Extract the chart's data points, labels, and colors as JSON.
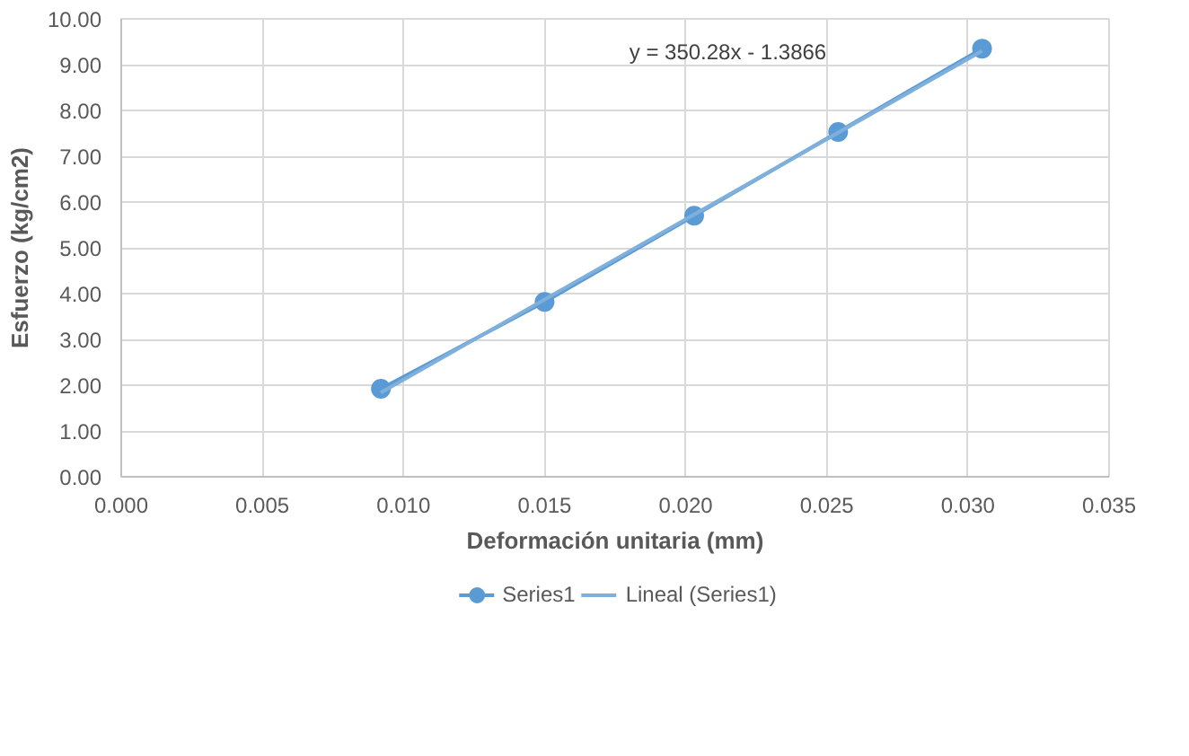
{
  "chart_data": {
    "type": "line",
    "xlabel": "Deformación unitaria (mm)",
    "ylabel": "Esfuerzo (kg/cm2)",
    "series": [
      {
        "name": "Series1",
        "marker": "circle",
        "color": "#5b9bd5",
        "x": [
          0.0092,
          0.015,
          0.0203,
          0.0254,
          0.0305
        ],
        "values": [
          1.92,
          3.82,
          5.7,
          7.53,
          9.35
        ]
      },
      {
        "name": "Lineal (Series1)",
        "marker": "none",
        "color": "#7fb0dc",
        "x": [
          0.0092,
          0.0305
        ],
        "values": [
          1.84,
          9.3
        ]
      }
    ],
    "annotations": [
      "y = 350.28x - 1.3866"
    ],
    "xlim": [
      0,
      0.035
    ],
    "ylim": [
      0,
      10
    ],
    "xticks": [
      {
        "value": 0,
        "label": "0.000"
      },
      {
        "value": 0.005,
        "label": "0.005"
      },
      {
        "value": 0.01,
        "label": "0.010"
      },
      {
        "value": 0.015,
        "label": "0.015"
      },
      {
        "value": 0.02,
        "label": "0.020"
      },
      {
        "value": 0.025,
        "label": "0.025"
      },
      {
        "value": 0.03,
        "label": "0.030"
      },
      {
        "value": 0.035,
        "label": "0.035"
      }
    ],
    "yticks": [
      {
        "value": 0,
        "label": "0.00"
      },
      {
        "value": 1,
        "label": "1.00"
      },
      {
        "value": 2,
        "label": "2.00"
      },
      {
        "value": 3,
        "label": "3.00"
      },
      {
        "value": 4,
        "label": "4.00"
      },
      {
        "value": 5,
        "label": "5.00"
      },
      {
        "value": 6,
        "label": "6.00"
      },
      {
        "value": 7,
        "label": "7.00"
      },
      {
        "value": 8,
        "label": "8.00"
      },
      {
        "value": 9,
        "label": "9.00"
      },
      {
        "value": 10,
        "label": "10.00"
      }
    ],
    "grid": true,
    "legend": "bottom"
  }
}
